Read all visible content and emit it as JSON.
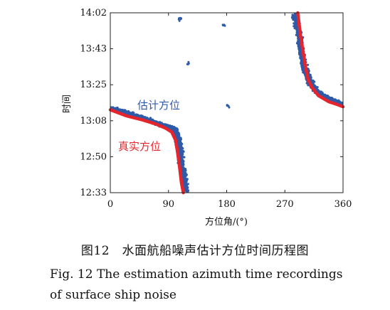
{
  "chart_data": {
    "type": "scatter",
    "xlabel": "方位角/(°)",
    "ylabel": "时间",
    "xlim": [
      0,
      360
    ],
    "x_ticks": [
      0,
      90,
      180,
      270,
      360
    ],
    "y_ticks": [
      "12:33",
      "12:50",
      "13:08",
      "13:25",
      "13:43",
      "14:02"
    ],
    "ylim_minutes": [
      0,
      89
    ],
    "grid": false,
    "series": [
      {
        "name": "估计方位",
        "color": "#2f5aa8",
        "segments": [
          {
            "x": [
              0,
              20,
              40,
              60,
              75,
              85,
              95,
              100,
              104,
              107,
              110,
              114,
              118
            ],
            "y": [
              42,
              40,
              38,
              36,
              34,
              33,
              32,
              31,
              27,
              22,
              15,
              7,
              0
            ]
          },
          {
            "x": [
              285,
              292,
              296,
              300,
              305,
              310,
              320,
              335,
              350,
              360
            ],
            "y": [
              89,
              78,
              70,
              62,
              58,
              54,
              50,
              47,
              45,
              43.5
            ]
          }
        ],
        "outliers": [
          [
            108,
            86
          ],
          [
            120,
            64
          ],
          [
            176,
            83
          ],
          [
            182,
            43
          ]
        ]
      },
      {
        "name": "真实方位",
        "color": "#e5252b",
        "segments": [
          {
            "x": [
              0,
              25,
              50,
              70,
              85,
              95,
              101,
              104,
              107,
              110,
              113
            ],
            "y": [
              41,
              38,
              36,
              34,
              32,
              30,
              26,
              20,
              13,
              5,
              0
            ]
          },
          {
            "x": [
              290,
              294,
              298,
              302,
              306,
              312,
              322,
              338,
              352,
              360
            ],
            "y": [
              89,
              78,
              70,
              62,
              56,
              52,
              48,
              45,
              43.5,
              42.5
            ]
          }
        ]
      }
    ],
    "annotations": [
      {
        "text": "估计方位",
        "color": "#2f5aa8"
      },
      {
        "text": "真实方位",
        "color": "#e5252b"
      }
    ]
  },
  "caption": {
    "cn": "图12　水面航船噪声估计方位时间历程图",
    "en_line1": "Fig. 12   The estimation azimuth time recordings",
    "en_line2": "of surface ship noise"
  }
}
